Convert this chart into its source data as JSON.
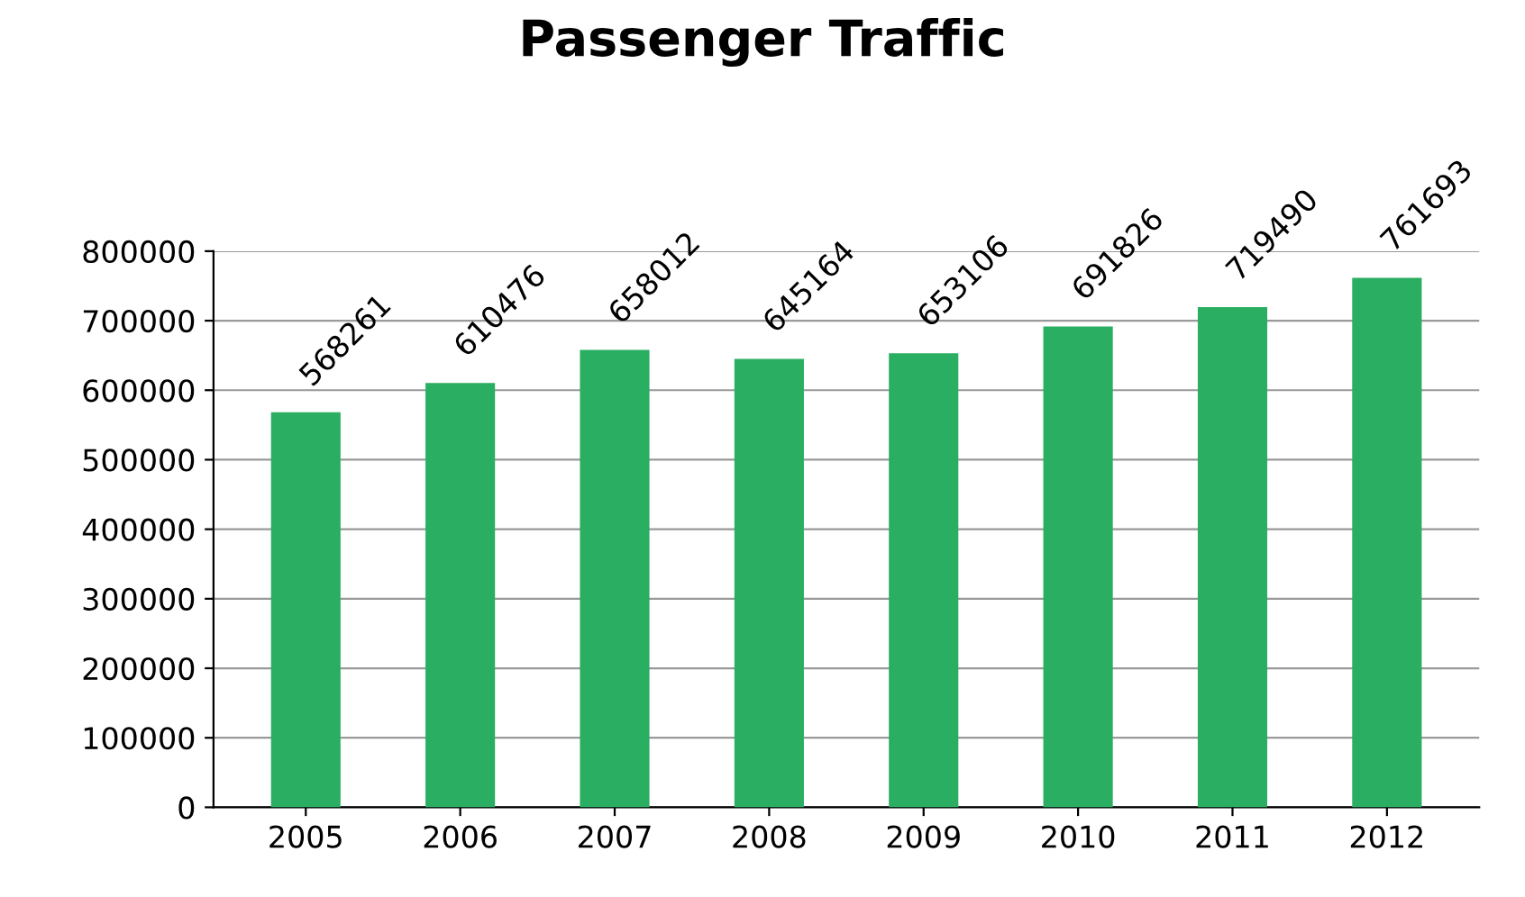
{
  "chart_data": {
    "type": "bar",
    "title": "Passenger Traffic",
    "categories": [
      "2005",
      "2006",
      "2007",
      "2008",
      "2009",
      "2010",
      "2011",
      "2012"
    ],
    "values": [
      568261,
      610476,
      658012,
      645164,
      653106,
      691826,
      719490,
      761693
    ],
    "color": "#2aae62",
    "ylim": [
      0,
      800000
    ],
    "yticks": [
      0,
      100000,
      200000,
      300000,
      400000,
      500000,
      600000,
      700000,
      800000
    ],
    "grid": "y",
    "data_labels": true
  }
}
